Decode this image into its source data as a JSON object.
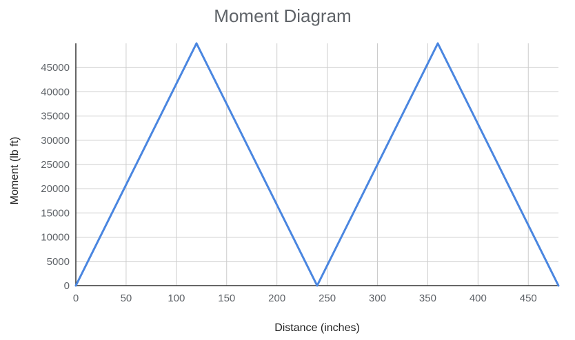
{
  "chart_data": {
    "type": "line",
    "title": "Moment Diagram",
    "xlabel": "Distance (inches)",
    "ylabel": "Moment (lb ft)",
    "xlim": [
      0,
      480
    ],
    "ylim": [
      0,
      50000
    ],
    "x_ticks": [
      "0",
      "50",
      "100",
      "150",
      "200",
      "250",
      "300",
      "350",
      "400",
      "450"
    ],
    "y_ticks": [
      "0",
      "5000",
      "10000",
      "15000",
      "20000",
      "25000",
      "30000",
      "35000",
      "40000",
      "45000"
    ],
    "grid": true,
    "legend": "none",
    "series": [
      {
        "color": "#4a86e0",
        "points": [
          {
            "x": 0,
            "y": 0
          },
          {
            "x": 120,
            "y": 50000
          },
          {
            "x": 240,
            "y": 0
          },
          {
            "x": 360,
            "y": 50000
          },
          {
            "x": 480,
            "y": 0
          }
        ]
      }
    ]
  }
}
